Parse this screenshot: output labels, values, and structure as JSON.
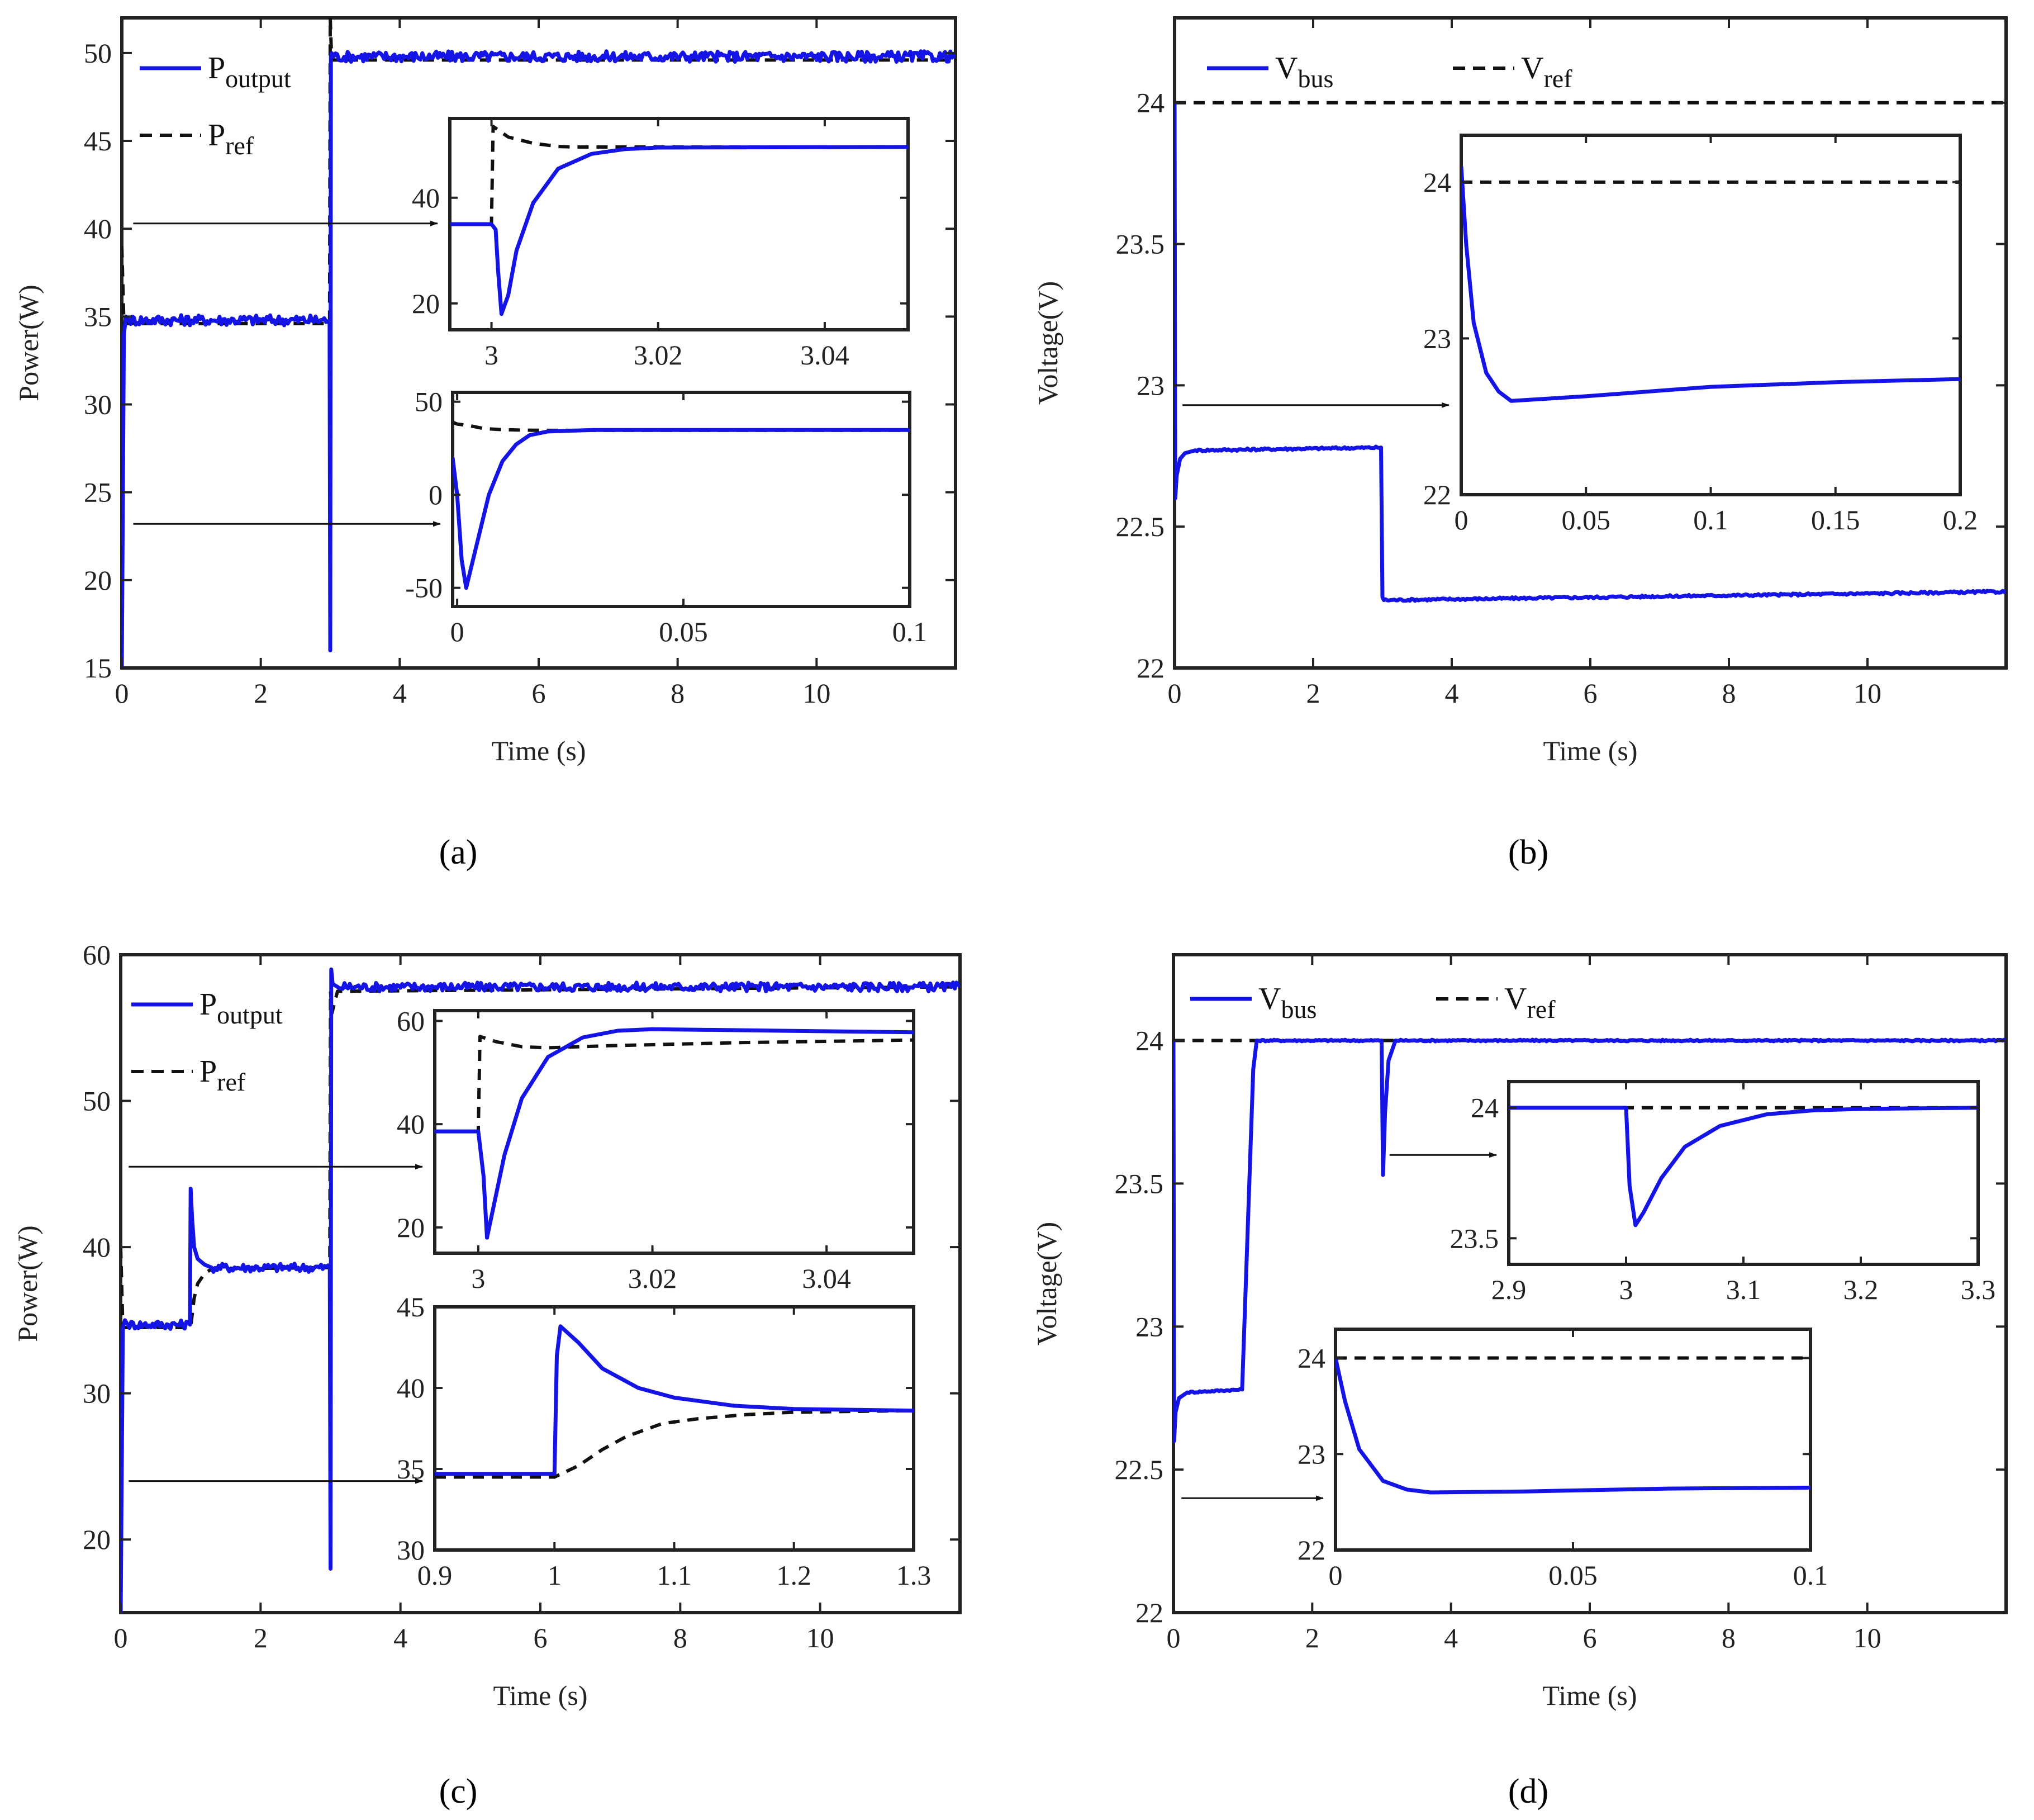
{
  "colors": {
    "series": "#1414e6",
    "reference": "#111111",
    "frame": "#222222"
  },
  "chart_data": [
    {
      "id": "a",
      "type": "line",
      "caption": "(a)",
      "xlabel": "Time (s)",
      "ylabel": "Power(W)",
      "xlim": [
        0,
        12
      ],
      "ylim": [
        15,
        52
      ],
      "xticks": [
        0,
        2,
        4,
        6,
        8,
        10
      ],
      "yticks": [
        15,
        20,
        25,
        30,
        35,
        40,
        45,
        50
      ],
      "legend": {
        "placement": "top-left",
        "entries": [
          {
            "series": 0,
            "base": "P",
            "sub": "output"
          },
          {
            "series": 1,
            "base": "P",
            "sub": "ref"
          }
        ]
      },
      "series": [
        {
          "name": "Poutput",
          "style": "solid",
          "noise": 0.3,
          "x": [
            0,
            0.03,
            0.06,
            0.1,
            2.99,
            3.0,
            3.01,
            3.02,
            3.05,
            12
          ],
          "y": [
            15,
            34,
            35,
            34.8,
            34.8,
            16,
            49.8,
            50,
            49.8,
            49.8
          ]
        },
        {
          "name": "Pref",
          "style": "dashed",
          "x": [
            0,
            0.03,
            2.99,
            3.0,
            3.02,
            3.06,
            12
          ],
          "y": [
            39,
            34.6,
            34.6,
            52,
            49.6,
            49.6,
            49.6
          ]
        }
      ],
      "arrows": [
        {
          "from": [
            0.1,
            40.3
          ],
          "to_inset": 0
        },
        {
          "from": [
            0.1,
            23.2
          ],
          "to_inset": 1
        }
      ],
      "insets": [
        {
          "xlim": [
            2.995,
            3.05
          ],
          "ylim": [
            15,
            55
          ],
          "xticks": [
            3,
            3.02,
            3.04
          ],
          "xtick_labels": [
            "3",
            "3.02",
            "3.04"
          ],
          "yticks": [
            20,
            40
          ],
          "ytick_labels": [
            "20",
            "40"
          ],
          "series": [
            {
              "name": "Poutput",
              "style": "solid",
              "x": [
                2.995,
                3.0,
                3.0005,
                3.0008,
                3.0012,
                3.002,
                3.003,
                3.005,
                3.008,
                3.012,
                3.016,
                3.02,
                3.05
              ],
              "y": [
                35,
                35,
                34,
                26,
                18,
                21.5,
                30,
                39,
                45.5,
                48.3,
                49.2,
                49.5,
                49.6
              ]
            },
            {
              "name": "Pref",
              "style": "dashed",
              "x": [
                2.995,
                3.0,
                3.0002,
                3.002,
                3.005,
                3.008,
                3.01,
                3.05
              ],
              "y": [
                35,
                35,
                53.5,
                51.5,
                50.3,
                49.7,
                49.6,
                49.6
              ]
            }
          ]
        },
        {
          "xlim": [
            -0.001,
            0.1
          ],
          "ylim": [
            -60,
            55
          ],
          "xticks": [
            0,
            0.05,
            0.1
          ],
          "xtick_labels": [
            "0",
            "0.05",
            "0.1"
          ],
          "yticks": [
            -50,
            0,
            50
          ],
          "ytick_labels": [
            "-50",
            "0",
            "50"
          ],
          "series": [
            {
              "name": "Poutput",
              "style": "solid",
              "x": [
                -0.001,
                0.0,
                0.001,
                0.002,
                0.004,
                0.007,
                0.01,
                0.013,
                0.016,
                0.02,
                0.03,
                0.1
              ],
              "y": [
                20,
                0,
                -35,
                -50,
                -30,
                0,
                18,
                27,
                32,
                34,
                34.8,
                34.8
              ]
            },
            {
              "name": "Pref",
              "style": "dashed",
              "x": [
                -0.001,
                0.0,
                0.003,
                0.006,
                0.01,
                0.015,
                0.02,
                0.1
              ],
              "y": [
                39,
                38,
                37,
                35.5,
                35,
                34.7,
                34.6,
                34.6
              ]
            }
          ]
        }
      ]
    },
    {
      "id": "b",
      "type": "line",
      "caption": "(b)",
      "xlabel": "Time (s)",
      "ylabel": "Voltage(V)",
      "xlim": [
        0,
        12
      ],
      "ylim": [
        22,
        24.3
      ],
      "xticks": [
        0,
        2,
        4,
        6,
        8,
        10
      ],
      "yticks": [
        22,
        22.5,
        23,
        23.5,
        24
      ],
      "ytick_labels": [
        "22",
        "22.5",
        "23",
        "23.5",
        "24"
      ],
      "legend": {
        "placement": "top-left-row",
        "entries": [
          {
            "series": 0,
            "base": "V",
            "sub": "bus"
          },
          {
            "series": 1,
            "base": "V",
            "sub": "ref"
          }
        ]
      },
      "series": [
        {
          "name": "Vbus",
          "style": "solid",
          "noise": 0.004,
          "x": [
            0,
            0.01,
            0.03,
            0.08,
            0.15,
            0.3,
            2.98,
            3.0,
            3.02,
            12
          ],
          "y": [
            24,
            22.6,
            22.68,
            22.74,
            22.76,
            22.77,
            22.78,
            22.25,
            22.24,
            22.27
          ]
        },
        {
          "name": "Vref",
          "style": "dashed",
          "x": [
            0,
            12
          ],
          "y": [
            24,
            24
          ]
        }
      ],
      "arrows": [
        {
          "from": [
            0.05,
            22.93
          ],
          "to_inset": 0
        }
      ],
      "insets": [
        {
          "xlim": [
            0,
            0.2
          ],
          "ylim": [
            22,
            24.3
          ],
          "xticks": [
            0,
            0.05,
            0.1,
            0.15,
            0.2
          ],
          "xtick_labels": [
            "0",
            "0.05",
            "0.1",
            "0.15",
            "0.2"
          ],
          "yticks": [
            22,
            23,
            24
          ],
          "ytick_labels": [
            "22",
            "23",
            "24"
          ],
          "series": [
            {
              "name": "Vbus",
              "style": "solid",
              "x": [
                0,
                0.002,
                0.005,
                0.01,
                0.015,
                0.02,
                0.05,
                0.1,
                0.15,
                0.2
              ],
              "y": [
                24.1,
                23.6,
                23.1,
                22.78,
                22.66,
                22.6,
                22.63,
                22.69,
                22.72,
                22.74
              ]
            },
            {
              "name": "Vref",
              "style": "dashed",
              "x": [
                0,
                0.2
              ],
              "y": [
                24,
                24
              ]
            }
          ]
        }
      ]
    },
    {
      "id": "c",
      "type": "line",
      "caption": "(c)",
      "xlabel": "Time (s)",
      "ylabel": "Power(W)",
      "xlim": [
        0,
        12
      ],
      "ylim": [
        15,
        60
      ],
      "xticks": [
        0,
        2,
        4,
        6,
        8,
        10
      ],
      "yticks": [
        20,
        30,
        40,
        50,
        60
      ],
      "legend": {
        "placement": "top-left",
        "entries": [
          {
            "series": 0,
            "base": "P",
            "sub": "output"
          },
          {
            "series": 1,
            "base": "P",
            "sub": "ref"
          }
        ]
      },
      "series": [
        {
          "name": "Poutput",
          "style": "solid",
          "noise": 0.3,
          "x": [
            0,
            0.03,
            0.06,
            0.1,
            0.99,
            1.0,
            1.02,
            1.05,
            1.1,
            1.2,
            1.3,
            2.99,
            3.0,
            3.01,
            3.03,
            3.1,
            12
          ],
          "y": [
            15,
            34.5,
            35,
            34.7,
            34.7,
            44,
            42,
            40,
            39.2,
            38.8,
            38.6,
            38.6,
            18,
            59,
            58,
            57.8,
            57.8
          ]
        },
        {
          "name": "Pref",
          "style": "dashed",
          "x": [
            0,
            0.03,
            1.0,
            1.05,
            1.1,
            1.2,
            1.3,
            2.99,
            3.0,
            3.02,
            3.1,
            12
          ],
          "y": [
            40,
            34.5,
            34.5,
            36.5,
            37.5,
            38.2,
            38.5,
            38.6,
            57.5,
            56,
            57.5,
            57.8
          ]
        }
      ],
      "arrows": [
        {
          "from": [
            0.05,
            45.5
          ],
          "to_inset": 0
        },
        {
          "from": [
            0.05,
            24
          ],
          "to_inset": 1
        }
      ],
      "insets": [
        {
          "xlim": [
            2.995,
            3.05
          ],
          "ylim": [
            15,
            62
          ],
          "xticks": [
            3,
            3.02,
            3.04
          ],
          "xtick_labels": [
            "3",
            "3.02",
            "3.04"
          ],
          "yticks": [
            20,
            40,
            60
          ],
          "ytick_labels": [
            "20",
            "40",
            "60"
          ],
          "series": [
            {
              "name": "Poutput",
              "style": "solid",
              "x": [
                2.995,
                3.0,
                3.0006,
                3.001,
                3.0015,
                3.003,
                3.005,
                3.008,
                3.012,
                3.016,
                3.02,
                3.05
              ],
              "y": [
                38.6,
                38.6,
                30,
                18,
                22,
                34,
                45,
                53,
                56.8,
                58.1,
                58.4,
                57.8
              ]
            },
            {
              "name": "Pref",
              "style": "dashed",
              "x": [
                2.995,
                3.0,
                3.0002,
                3.002,
                3.005,
                3.008,
                3.015,
                3.03,
                3.05
              ],
              "y": [
                38.6,
                38.6,
                57,
                56,
                55,
                54.8,
                55.2,
                55.8,
                56.3
              ]
            }
          ]
        },
        {
          "xlim": [
            0.9,
            1.3
          ],
          "ylim": [
            30,
            45
          ],
          "xticks": [
            0.9,
            1,
            1.1,
            1.2,
            1.3
          ],
          "xtick_labels": [
            "0.9",
            "1",
            "1.1",
            "1.2",
            "1.3"
          ],
          "yticks": [
            30,
            35,
            40,
            45
          ],
          "ytick_labels": [
            "30",
            "35",
            "40",
            "45"
          ],
          "series": [
            {
              "name": "Poutput",
              "style": "solid",
              "noise": 0.15,
              "x": [
                0.9,
                1.0,
                1.002,
                1.005,
                1.02,
                1.04,
                1.07,
                1.1,
                1.15,
                1.2,
                1.3
              ],
              "y": [
                34.7,
                34.7,
                42,
                43.8,
                42.8,
                41.2,
                40,
                39.4,
                38.9,
                38.7,
                38.6
              ]
            },
            {
              "name": "Pref",
              "style": "dashed",
              "x": [
                0.9,
                1.0,
                1.02,
                1.04,
                1.06,
                1.09,
                1.12,
                1.16,
                1.2,
                1.3
              ],
              "y": [
                34.5,
                34.5,
                35.2,
                36.2,
                37,
                37.8,
                38.1,
                38.35,
                38.5,
                38.6
              ]
            }
          ]
        }
      ]
    },
    {
      "id": "d",
      "type": "line",
      "caption": "(d)",
      "xlabel": "Time (s)",
      "ylabel": "Voltage(V)",
      "xlim": [
        0,
        12
      ],
      "ylim": [
        22,
        24.3
      ],
      "xticks": [
        0,
        2,
        4,
        6,
        8,
        10
      ],
      "yticks": [
        22,
        22.5,
        23,
        23.5,
        24
      ],
      "ytick_labels": [
        "22",
        "22.5",
        "23",
        "23.5",
        "24"
      ],
      "legend": {
        "placement": "top-left-row",
        "entries": [
          {
            "series": 0,
            "base": "V",
            "sub": "bus"
          },
          {
            "series": 1,
            "base": "V",
            "sub": "ref"
          }
        ]
      },
      "series": [
        {
          "name": "Vbus",
          "style": "solid",
          "noise": 0.003,
          "x": [
            0,
            0.01,
            0.03,
            0.08,
            0.2,
            0.99,
            1.05,
            1.15,
            1.2,
            3.0,
            3.02,
            3.05,
            3.1,
            3.2,
            12
          ],
          "y": [
            24,
            22.6,
            22.7,
            22.75,
            22.77,
            22.78,
            23.2,
            23.9,
            24,
            24,
            23.53,
            23.75,
            23.93,
            24,
            24
          ]
        },
        {
          "name": "Vref",
          "style": "dashed",
          "x": [
            0,
            12
          ],
          "y": [
            24,
            24
          ]
        }
      ],
      "arrows": [
        {
          "from": [
            3.05,
            23.6
          ],
          "to_inset": 0
        },
        {
          "from": [
            0.05,
            22.4
          ],
          "to_inset": 1
        }
      ],
      "insets": [
        {
          "xlim": [
            2.9,
            3.3
          ],
          "ylim": [
            23.4,
            24.1
          ],
          "xticks": [
            2.9,
            3,
            3.1,
            3.2,
            3.3
          ],
          "xtick_labels": [
            "2.9",
            "3",
            "3.1",
            "3.2",
            "3.3"
          ],
          "yticks": [
            23.5,
            24
          ],
          "ytick_labels": [
            "23.5",
            "24"
          ],
          "series": [
            {
              "name": "Vbus",
              "style": "solid",
              "x": [
                2.9,
                3.0,
                3.003,
                3.008,
                3.015,
                3.03,
                3.05,
                3.08,
                3.12,
                3.16,
                3.2,
                3.3
              ],
              "y": [
                24,
                24,
                23.7,
                23.55,
                23.6,
                23.73,
                23.85,
                23.93,
                23.975,
                23.99,
                23.995,
                24
              ]
            },
            {
              "name": "Vref",
              "style": "dashed",
              "x": [
                2.9,
                3.3
              ],
              "y": [
                24,
                24
              ]
            }
          ]
        },
        {
          "xlim": [
            0,
            0.1
          ],
          "ylim": [
            22,
            24.3
          ],
          "xticks": [
            0,
            0.05,
            0.1
          ],
          "xtick_labels": [
            "0",
            "0.05",
            "0.1"
          ],
          "yticks": [
            22,
            23,
            24
          ],
          "ytick_labels": [
            "22",
            "23",
            "24"
          ],
          "series": [
            {
              "name": "Vbus",
              "style": "solid",
              "x": [
                0,
                0.002,
                0.005,
                0.01,
                0.015,
                0.02,
                0.04,
                0.07,
                0.1
              ],
              "y": [
                24,
                23.55,
                23.05,
                22.72,
                22.63,
                22.6,
                22.61,
                22.64,
                22.65
              ]
            },
            {
              "name": "Vref",
              "style": "dashed",
              "x": [
                0,
                0.1
              ],
              "y": [
                24,
                24
              ]
            }
          ]
        }
      ]
    }
  ]
}
